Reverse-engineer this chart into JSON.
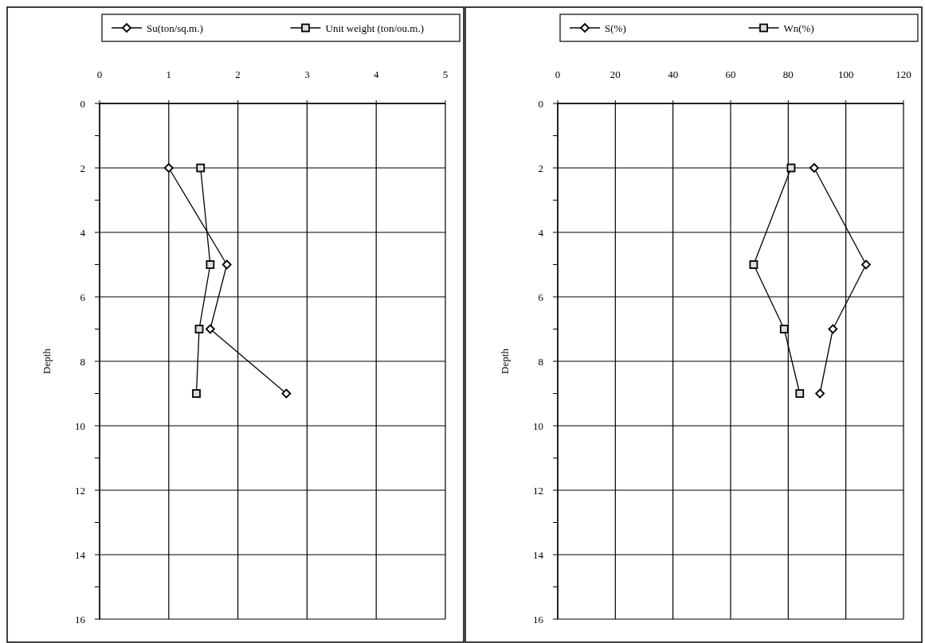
{
  "chart_data": [
    {
      "type": "line",
      "ylabel": "Depth",
      "legend": "top",
      "grid": true,
      "xlim": [
        0,
        5
      ],
      "xticks": [
        0,
        1,
        2,
        3,
        4,
        5
      ],
      "ylim": [
        16,
        0
      ],
      "yticks": [
        0,
        {
          "value": 1,
          "label": null
        },
        2,
        {
          "value": 3,
          "label": null
        },
        4,
        {
          "value": 5,
          "label": null
        },
        6,
        {
          "value": 7,
          "label": null
        },
        8,
        {
          "value": 9,
          "label": null
        },
        10,
        {
          "value": 11,
          "label": null
        },
        12,
        {
          "value": 13,
          "label": null
        },
        14,
        {
          "value": 15,
          "label": null
        },
        16
      ],
      "series": [
        {
          "name": "Su(ton/sq.m.)",
          "color": "#000000",
          "marker": "diamond",
          "x": [
            1.0,
            1.84,
            1.6,
            2.7
          ],
          "values": [
            2,
            5,
            7,
            9
          ]
        },
        {
          "name": "Unit weight (ton/ou.m.)",
          "color": "#000000",
          "marker": "square",
          "x": [
            1.46,
            1.6,
            1.44,
            1.4
          ],
          "values": [
            2,
            5,
            7,
            9
          ]
        }
      ]
    },
    {
      "type": "line",
      "ylabel": "Depth",
      "legend": "top",
      "grid": true,
      "xlim": [
        0,
        120
      ],
      "xticks": [
        0,
        20,
        40,
        60,
        80,
        100,
        120
      ],
      "ylim": [
        16,
        0
      ],
      "yticks": [
        0,
        {
          "value": 1,
          "label": null
        },
        2,
        {
          "value": 3,
          "label": null
        },
        4,
        {
          "value": 5,
          "label": null
        },
        6,
        {
          "value": 7,
          "label": null
        },
        8,
        {
          "value": 9,
          "label": null
        },
        10,
        {
          "value": 11,
          "label": null
        },
        12,
        {
          "value": 13,
          "label": null
        },
        14,
        {
          "value": 15,
          "label": null
        },
        16
      ],
      "series": [
        {
          "name": "S(%)",
          "color": "#000000",
          "marker": "diamond",
          "x": [
            89,
            107,
            95.5,
            91
          ],
          "values": [
            2,
            5,
            7,
            9
          ]
        },
        {
          "name": "Wn(%)",
          "color": "#000000",
          "marker": "square",
          "x": [
            81,
            68,
            78.6,
            84
          ],
          "values": [
            2,
            5,
            7,
            9
          ]
        }
      ]
    }
  ]
}
